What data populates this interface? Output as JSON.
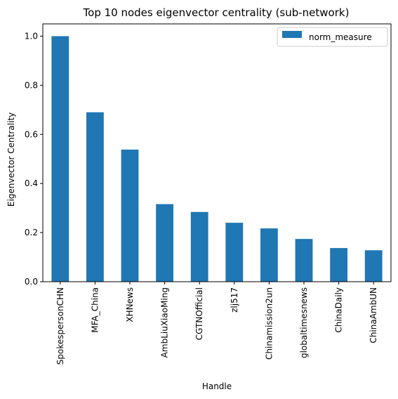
{
  "chart_data": {
    "type": "bar",
    "title": "Top 10 nodes eigenvector centrality (sub-network)",
    "xlabel": "Handle",
    "ylabel": "Eigenvector Centrality",
    "ylim": [
      0,
      1.05
    ],
    "yticks": [
      0.0,
      0.2,
      0.4,
      0.6,
      0.8,
      1.0
    ],
    "ytick_labels": [
      "0.0",
      "0.2",
      "0.4",
      "0.6",
      "0.8",
      "1.0"
    ],
    "grid": false,
    "legend_position": "top-right",
    "categories": [
      "SpokespersonCHN",
      "MFA_China",
      "XHNews",
      "AmbLiuXiaoMing",
      "CGTNOfficial",
      "zlj517",
      "Chinamission2un",
      "globaltimesnews",
      "ChinaDaily",
      "ChinaAmbUN"
    ],
    "series": [
      {
        "name": "norm_measure",
        "color": "#1f77b4",
        "values": [
          1.0,
          0.69,
          0.538,
          0.316,
          0.284,
          0.24,
          0.217,
          0.174,
          0.137,
          0.128
        ]
      }
    ]
  }
}
